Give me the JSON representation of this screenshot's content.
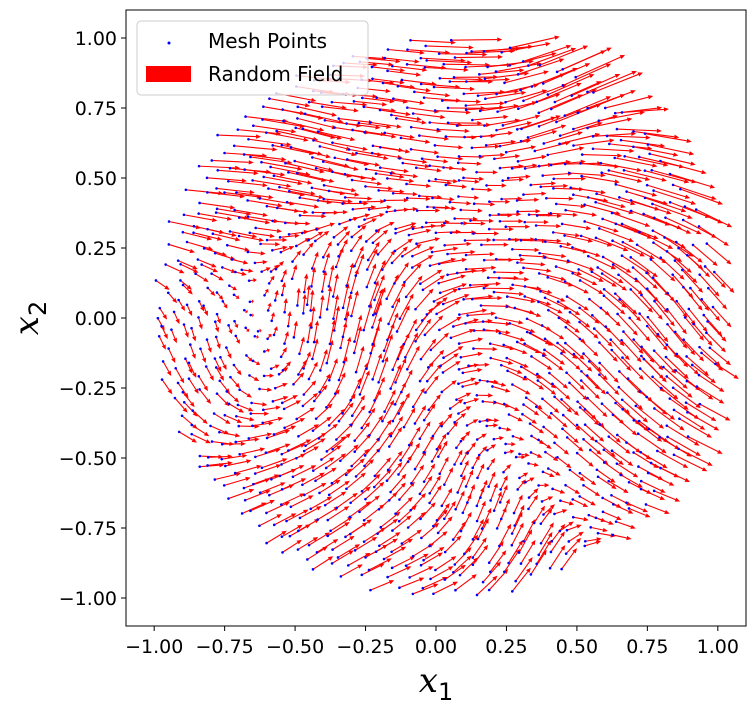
{
  "chart_data": {
    "type": "quiver",
    "title": "",
    "xlabel": "x",
    "xlabel_subscript": "1",
    "ylabel": "x",
    "ylabel_subscript": "2",
    "xlim": [
      -1.1,
      1.1
    ],
    "ylim": [
      -1.1,
      1.1
    ],
    "xticks": [
      -1.0,
      -0.75,
      -0.5,
      -0.25,
      0.0,
      0.25,
      0.5,
      0.75,
      1.0
    ],
    "xtick_labels": [
      "−1.00",
      "−0.75",
      "−0.50",
      "−0.25",
      "0.00",
      "0.25",
      "0.50",
      "0.75",
      "1.00"
    ],
    "yticks": [
      1.0,
      0.75,
      0.5,
      0.25,
      0.0,
      -0.25,
      -0.5,
      -0.75,
      -1.0
    ],
    "ytick_labels": [
      "1.00",
      "0.75",
      "0.50",
      "0.25",
      "0.00",
      "−0.25",
      "−0.50",
      "−0.75",
      "−1.00"
    ],
    "grid": false,
    "legend_position": "top-left",
    "legend": [
      {
        "label": "Mesh Points",
        "marker": "point",
        "color": "#0000ff"
      },
      {
        "label": "Random Field",
        "marker": "patch",
        "color": "#ff0000"
      }
    ],
    "domain": {
      "shape": "disk",
      "center": [
        0.0,
        0.0
      ],
      "radius": 1.0
    },
    "mesh_points": {
      "color": "#0000ff",
      "approx_count": 1300
    },
    "vector_field": {
      "color": "#ff0000",
      "kind": "random smooth field",
      "sample_vectors": [
        {
          "x": -0.9,
          "y": 0.55,
          "u": 0.12,
          "v": -0.03
        },
        {
          "x": -0.6,
          "y": 0.7,
          "u": 0.12,
          "v": -0.04
        },
        {
          "x": -0.3,
          "y": 0.85,
          "u": 0.12,
          "v": 0.02
        },
        {
          "x": 0.1,
          "y": 0.95,
          "u": 0.18,
          "v": 0.02
        },
        {
          "x": 0.4,
          "y": 0.85,
          "u": 0.18,
          "v": 0.05
        },
        {
          "x": 0.7,
          "y": 0.5,
          "u": 0.14,
          "v": -0.06
        },
        {
          "x": 0.9,
          "y": 0.1,
          "u": 0.1,
          "v": -0.08
        },
        {
          "x": 0.85,
          "y": -0.3,
          "u": 0.1,
          "v": -0.06
        },
        {
          "x": 0.6,
          "y": -0.6,
          "u": 0.06,
          "v": -0.03
        },
        {
          "x": 0.25,
          "y": -0.85,
          "u": 0.05,
          "v": 0.08
        },
        {
          "x": -0.2,
          "y": -0.85,
          "u": 0.08,
          "v": 0.06
        },
        {
          "x": -0.6,
          "y": -0.6,
          "u": 0.06,
          "v": 0.04
        },
        {
          "x": -0.9,
          "y": -0.2,
          "u": 0.04,
          "v": -0.02
        },
        {
          "x": -0.3,
          "y": 0.0,
          "u": 0.02,
          "v": 0.07
        },
        {
          "x": 0.2,
          "y": 0.3,
          "u": 0.08,
          "v": 0.0
        },
        {
          "x": 0.4,
          "y": -0.1,
          "u": 0.06,
          "v": -0.03
        }
      ]
    }
  }
}
